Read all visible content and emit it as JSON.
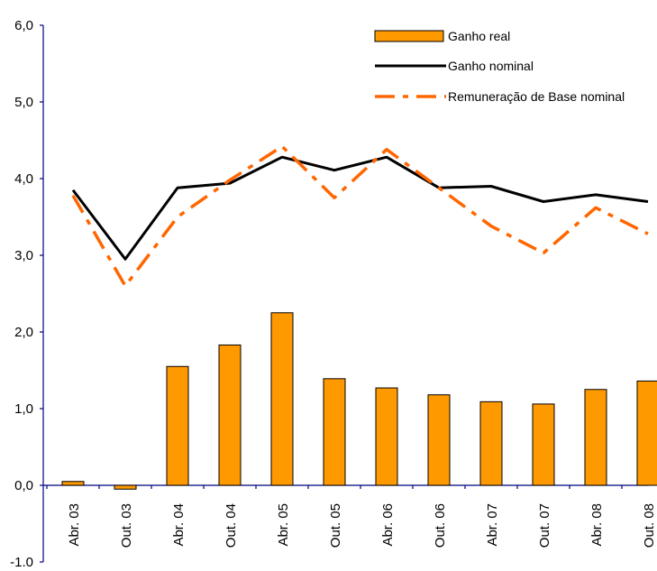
{
  "chart_data": {
    "type": "bar",
    "title": "",
    "xlabel": "",
    "ylabel": "",
    "categories": [
      "Abr. 03",
      "Out. 03",
      "Abr. 04",
      "Out. 04",
      "Abr. 05",
      "Out. 05",
      "Abr. 06",
      "Out. 06",
      "Abr. 07",
      "Out. 07",
      "Abr. 08",
      "Out. 08"
    ],
    "ylim": [
      -1.0,
      6.0
    ],
    "yticks": [
      "-1,0",
      "0,0",
      "1,0",
      "2,0",
      "3,0",
      "4,0",
      "5,0",
      "6,0"
    ],
    "ytick_values": [
      -1,
      0,
      1,
      2,
      3,
      4,
      5,
      6
    ],
    "grid": false,
    "legend_position": "top-right",
    "series": [
      {
        "name": "Ganho real",
        "kind": "bar",
        "color": "#FF9900",
        "values": [
          0.05,
          -0.05,
          1.55,
          1.83,
          2.25,
          1.39,
          1.27,
          1.18,
          1.09,
          1.06,
          1.25,
          1.36
        ]
      },
      {
        "name": "Ganho nominal",
        "kind": "line",
        "color": "#000000",
        "values": [
          3.85,
          2.95,
          3.88,
          3.94,
          4.28,
          4.11,
          4.28,
          3.88,
          3.9,
          3.7,
          3.79,
          3.7
        ]
      },
      {
        "name": "Remuneração de Base nominal",
        "kind": "line-dashdot",
        "color": "#FF6600",
        "values": [
          3.78,
          2.6,
          3.5,
          3.98,
          4.42,
          3.75,
          4.38,
          3.88,
          3.38,
          3.03,
          3.62,
          3.28
        ]
      }
    ]
  }
}
